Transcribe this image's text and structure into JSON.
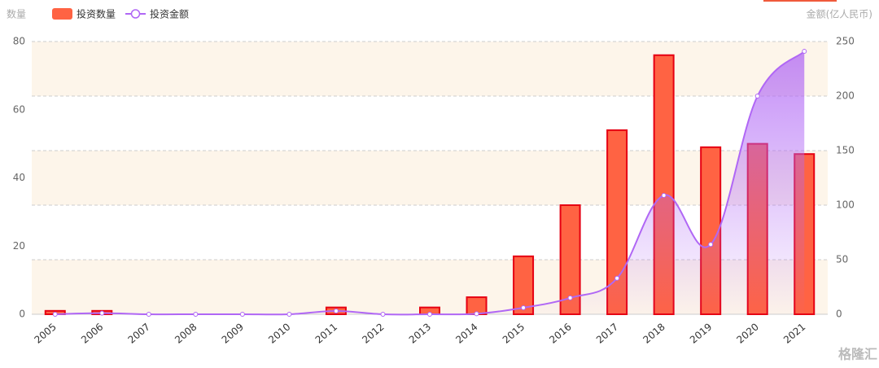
{
  "chart_data": {
    "type": "bar_line",
    "y_axis_label": "数量",
    "y2_axis_label": "金额(亿人民币)",
    "categories": [
      "2005",
      "2006",
      "2007",
      "2008",
      "2009",
      "2010",
      "2011",
      "2012",
      "2013",
      "2014",
      "2015",
      "2016",
      "2017",
      "2018",
      "2019",
      "2020",
      "2021"
    ],
    "series": [
      {
        "name": "投资数量",
        "type": "bar",
        "color": "#ff6343",
        "stroke": "#e60012",
        "axis": "y",
        "values": [
          1,
          1,
          0,
          0,
          0,
          0,
          2,
          0,
          2,
          5,
          17,
          32,
          54,
          76,
          49,
          50,
          47
        ]
      },
      {
        "name": "投资金额",
        "type": "line",
        "color": "#b067f5",
        "axis": "y2",
        "values": [
          0,
          1,
          0,
          0,
          0,
          0,
          3,
          0,
          0,
          0.5,
          6,
          15,
          33,
          109,
          64,
          200,
          241
        ]
      }
    ],
    "ylim": [
      0,
      80
    ],
    "yticks": [
      0,
      20,
      40,
      60,
      80
    ],
    "y2lim": [
      0,
      250
    ],
    "y2ticks": [
      0,
      50,
      100,
      150,
      200,
      250
    ],
    "grid": true,
    "watermark": "格隆汇"
  }
}
